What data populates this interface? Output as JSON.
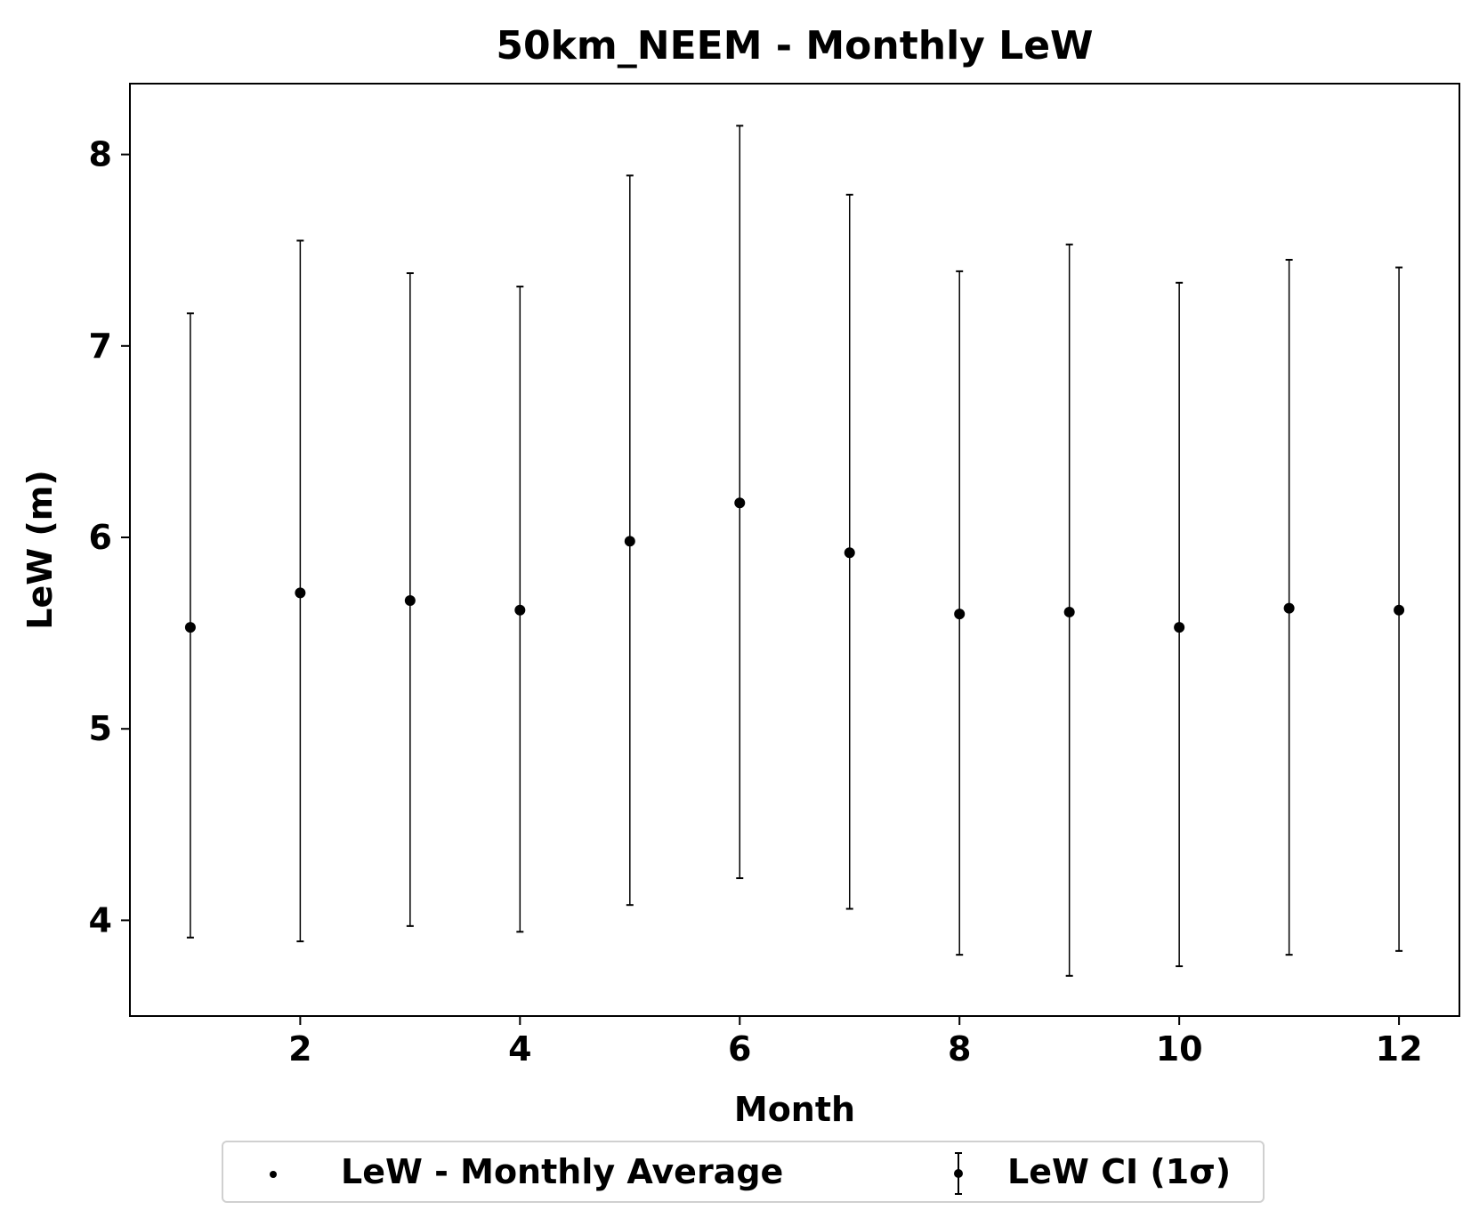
{
  "chart_data": {
    "type": "scatter",
    "title": "50km_NEEM - Monthly LeW",
    "xlabel": "Month",
    "ylabel": "LeW (m)",
    "xlim": [
      0.45,
      12.55
    ],
    "ylim": [
      3.5,
      8.37
    ],
    "xticks": [
      2,
      4,
      6,
      8,
      10,
      12
    ],
    "yticks": [
      4,
      5,
      6,
      7,
      8
    ],
    "grid": false,
    "legend_position": "bottom-center",
    "series": [
      {
        "name": "LeW - Monthly Average",
        "x": [
          1,
          2,
          3,
          4,
          5,
          6,
          7,
          8,
          9,
          10,
          11,
          12
        ],
        "y": [
          5.53,
          5.71,
          5.67,
          5.62,
          5.98,
          6.18,
          5.92,
          5.6,
          5.61,
          5.53,
          5.63,
          5.62
        ],
        "color": "#000000"
      },
      {
        "name": "LeW CI (1σ)",
        "x": [
          1,
          2,
          3,
          4,
          5,
          6,
          7,
          8,
          9,
          10,
          11,
          12
        ],
        "lower": [
          3.91,
          3.89,
          3.97,
          3.94,
          4.08,
          4.22,
          4.06,
          3.82,
          3.71,
          3.76,
          3.82,
          3.84
        ],
        "upper": [
          7.17,
          7.55,
          7.38,
          7.31,
          7.89,
          8.15,
          7.79,
          7.39,
          7.53,
          7.33,
          7.45,
          7.41
        ],
        "color": "#000000"
      }
    ]
  }
}
